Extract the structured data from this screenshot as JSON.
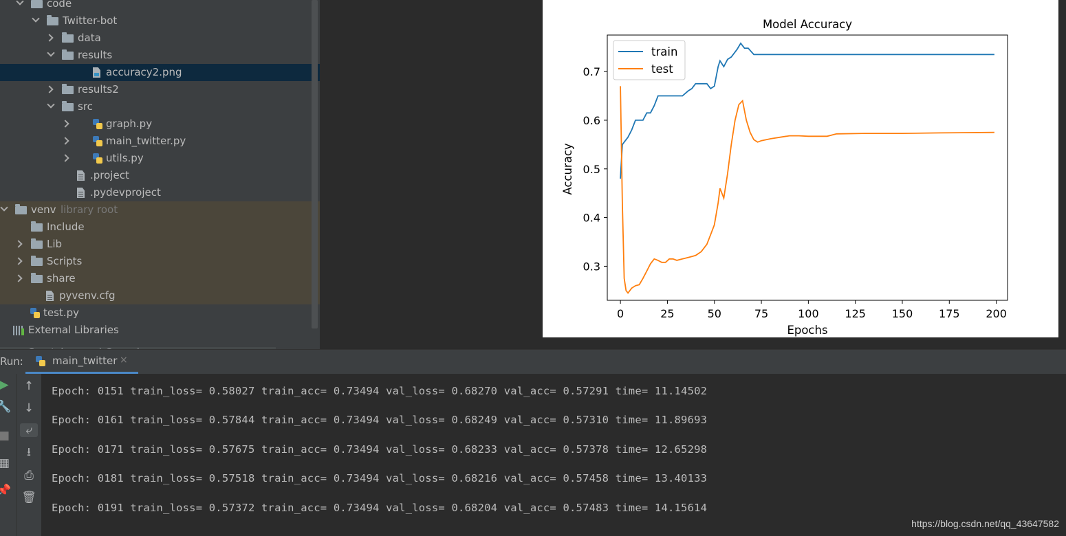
{
  "project_tree": [
    {
      "label": "code",
      "depth": "code",
      "expanded": true,
      "icon": "folder-icon",
      "indent": 45
    },
    {
      "label": "Twitter-bot",
      "expanded": true,
      "icon": "folder-icon",
      "indent": 68
    },
    {
      "label": "data",
      "expanded": false,
      "icon": "folder-icon",
      "indent": 90
    },
    {
      "label": "results",
      "expanded": true,
      "icon": "folder-icon",
      "indent": 90
    },
    {
      "label": "accuracy2.png",
      "icon": "image-file-icon",
      "indent": 113,
      "selected": true
    },
    {
      "label": "results2",
      "expanded": false,
      "icon": "folder-icon",
      "indent": 90
    },
    {
      "label": "src",
      "expanded": true,
      "icon": "folder-icon",
      "indent": 90
    },
    {
      "label": "graph.py",
      "expanded": false,
      "icon": "python-file-icon",
      "indent": 113
    },
    {
      "label": "main_twitter.py",
      "expanded": false,
      "icon": "python-file-icon",
      "indent": 113
    },
    {
      "label": "utils.py",
      "expanded": false,
      "icon": "python-file-icon",
      "indent": 113
    },
    {
      "label": ".project",
      "icon": "file-icon",
      "indent": 90
    },
    {
      "label": ".pydevproject",
      "icon": "file-icon",
      "indent": 90
    },
    {
      "label": "venv",
      "suffix": "library root",
      "expanded": true,
      "icon": "folder-icon",
      "indent": 22,
      "tint": true
    },
    {
      "label": "Include",
      "icon": "folder-icon",
      "indent": 45,
      "tint": true
    },
    {
      "label": "Lib",
      "expanded": false,
      "icon": "folder-icon",
      "indent": 45,
      "tint": true
    },
    {
      "label": "Scripts",
      "expanded": false,
      "icon": "folder-icon",
      "indent": 45,
      "tint": true
    },
    {
      "label": "share",
      "expanded": false,
      "icon": "folder-icon",
      "indent": 45,
      "tint": true
    },
    {
      "label": "pyvenv.cfg",
      "icon": "file-icon",
      "indent": 45,
      "tint": true
    },
    {
      "label": "test.py",
      "icon": "python-file-icon",
      "indent": 22
    },
    {
      "label": "External Libraries",
      "expanded": false,
      "icon": "libraries-icon",
      "indent": 0
    },
    {
      "label": "Scratches and Consoles",
      "icon": "scratches-icon",
      "indent": 0
    }
  ],
  "run": {
    "label": "Run:",
    "tab_label": "main_twitter",
    "tab_icon": "python-file-icon",
    "close_glyph": "×",
    "console_lines": [
      "Epoch: 0151 train_loss= 0.58027 train_acc= 0.73494 val_loss= 0.68270 val_acc= 0.57291 time= 11.14502",
      "Epoch: 0161 train_loss= 0.57844 train_acc= 0.73494 val_loss= 0.68249 val_acc= 0.57310 time= 11.89693",
      "Epoch: 0171 train_loss= 0.57675 train_acc= 0.73494 val_loss= 0.68233 val_acc= 0.57378 time= 12.65298",
      "Epoch: 0181 train_loss= 0.57518 train_acc= 0.73494 val_loss= 0.68216 val_acc= 0.57458 time= 13.40133",
      "Epoch: 0191 train_loss= 0.57372 train_acc= 0.73494 val_loss= 0.68204 val_acc= 0.57483 time= 14.15614"
    ],
    "toolbar_icons": [
      "run-icon",
      "up-arrow-icon",
      "wrench-icon",
      "down-arrow-icon",
      "stop-icon",
      "soft-wrap-icon",
      "layout-icon",
      "scroll-to-end-icon",
      "pin-icon",
      "print-icon",
      "trash-icon"
    ]
  },
  "watermark": "https://blog.csdn.net/qq_43647582",
  "chart_data": {
    "type": "line",
    "title": "Model Accuracy",
    "xlabel": "Epochs",
    "ylabel": "Accuracy",
    "xlim": [
      -7,
      206
    ],
    "ylim": [
      0.23,
      0.775
    ],
    "xticks": [
      0,
      25,
      50,
      75,
      100,
      125,
      150,
      175,
      200
    ],
    "yticks": [
      0.3,
      0.4,
      0.5,
      0.6,
      0.7
    ],
    "ytick_labels": [
      "0.3",
      "0.4",
      "0.5",
      "0.6",
      "0.7"
    ],
    "legend_position": "upper-left",
    "grid": false,
    "series": [
      {
        "name": "train",
        "color": "#1f77b4",
        "x": [
          0,
          1,
          2,
          4,
          6,
          8,
          10,
          12,
          14,
          16,
          18,
          20,
          22,
          25,
          28,
          30,
          33,
          36,
          38,
          40,
          43,
          46,
          48,
          50,
          52,
          53,
          55,
          57,
          59,
          62,
          64,
          66,
          68,
          71,
          73,
          80,
          100,
          120,
          140,
          160,
          180,
          199
        ],
        "y": [
          0.48,
          0.55,
          0.555,
          0.565,
          0.58,
          0.6,
          0.6,
          0.6,
          0.615,
          0.615,
          0.63,
          0.65,
          0.65,
          0.65,
          0.65,
          0.65,
          0.65,
          0.66,
          0.665,
          0.675,
          0.675,
          0.675,
          0.665,
          0.67,
          0.71,
          0.722,
          0.71,
          0.725,
          0.73,
          0.745,
          0.758,
          0.748,
          0.748,
          0.735,
          0.735,
          0.735,
          0.735,
          0.735,
          0.735,
          0.735,
          0.735,
          0.735
        ]
      },
      {
        "name": "test",
        "color": "#ff7f0e",
        "x": [
          0,
          1,
          2,
          3,
          4,
          6,
          8,
          10,
          12,
          14,
          16,
          18,
          20,
          22,
          24,
          26,
          28,
          30,
          33,
          36,
          38,
          40,
          43,
          46,
          48,
          50,
          52,
          53,
          55,
          57,
          59,
          61,
          63,
          65,
          67,
          69,
          71,
          73,
          75,
          80,
          85,
          90,
          95,
          100,
          105,
          110,
          115,
          130,
          150,
          170,
          199
        ],
        "y": [
          0.67,
          0.43,
          0.275,
          0.25,
          0.245,
          0.255,
          0.26,
          0.262,
          0.275,
          0.29,
          0.305,
          0.315,
          0.312,
          0.308,
          0.308,
          0.315,
          0.315,
          0.312,
          0.315,
          0.318,
          0.32,
          0.322,
          0.33,
          0.345,
          0.365,
          0.385,
          0.43,
          0.46,
          0.44,
          0.49,
          0.55,
          0.6,
          0.632,
          0.64,
          0.6,
          0.575,
          0.56,
          0.555,
          0.558,
          0.562,
          0.565,
          0.568,
          0.568,
          0.567,
          0.567,
          0.567,
          0.572,
          0.573,
          0.573,
          0.574,
          0.575
        ]
      }
    ]
  }
}
